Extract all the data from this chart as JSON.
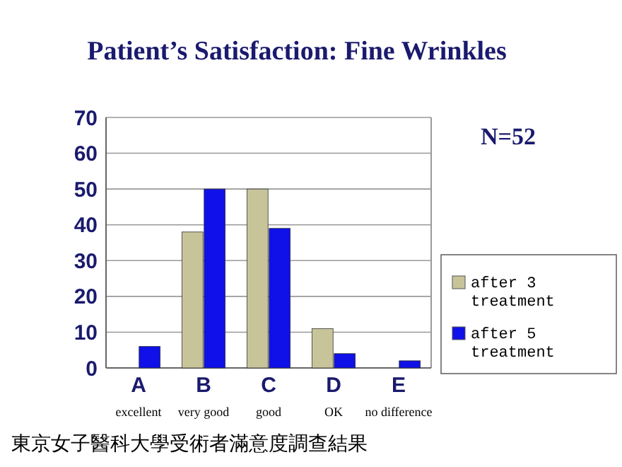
{
  "chart_data": {
    "type": "bar",
    "title": "Patient’s Satisfaction: Fine Wrinkles",
    "categories": [
      "A\nexcellent",
      "B\nvery good",
      "C\ngood",
      "D\nOK",
      "E\nno difference"
    ],
    "series": [
      {
        "name": "after 3 treatment",
        "color": "#c8c49a",
        "values": [
          0,
          38,
          50,
          11,
          0
        ]
      },
      {
        "name": "after 5 treatment",
        "color": "#1010e8",
        "values": [
          6,
          50,
          39,
          4,
          2
        ]
      }
    ],
    "ylim": [
      0,
      70
    ],
    "yticks": [
      0,
      10,
      20,
      30,
      40,
      50,
      60,
      70
    ],
    "grid": "y",
    "legend": "right",
    "annotations": [
      "N=52",
      "東京女子醫科大學受術者滿意度調查結果"
    ]
  }
}
